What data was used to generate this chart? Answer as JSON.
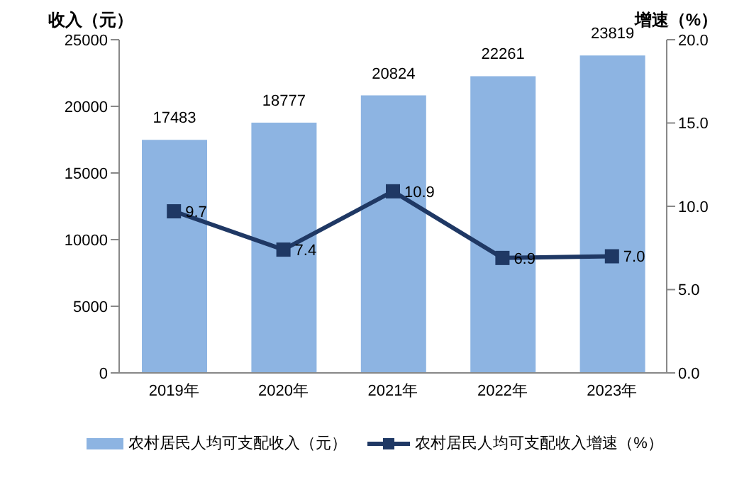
{
  "chart_data": {
    "type": "bar",
    "ylabel": "收入（元）",
    "y2label": "增速（%）",
    "categories": [
      "2019年",
      "2020年",
      "2021年",
      "2022年",
      "2023年"
    ],
    "series": [
      {
        "name": "农村居民人均可支配收入（元）",
        "color": "#8db4e2",
        "values": [
          17483,
          18777,
          20824,
          22261,
          23819
        ]
      },
      {
        "name": "农村居民人均可支配收入增速（%）",
        "type": "line",
        "axis": "y2",
        "color": "#1f3864",
        "values": [
          9.7,
          7.4,
          10.9,
          6.9,
          7.0
        ],
        "value_labels": [
          "9.7",
          "7.4",
          "10.9",
          "6.9",
          "7.0"
        ],
        "marker": "square"
      }
    ],
    "ylim": [
      0,
      25000
    ],
    "yticks": [
      0,
      5000,
      10000,
      15000,
      20000,
      25000
    ],
    "y2lim": [
      0,
      20
    ],
    "y2ticks": [
      {
        "value": 0,
        "label": "0.0"
      },
      {
        "value": 5,
        "label": "5.0"
      },
      {
        "value": 10,
        "label": "10.0"
      },
      {
        "value": 15,
        "label": "15.0"
      },
      {
        "value": 20,
        "label": "20.0"
      }
    ],
    "legend": "bottom",
    "data_labels": true
  }
}
